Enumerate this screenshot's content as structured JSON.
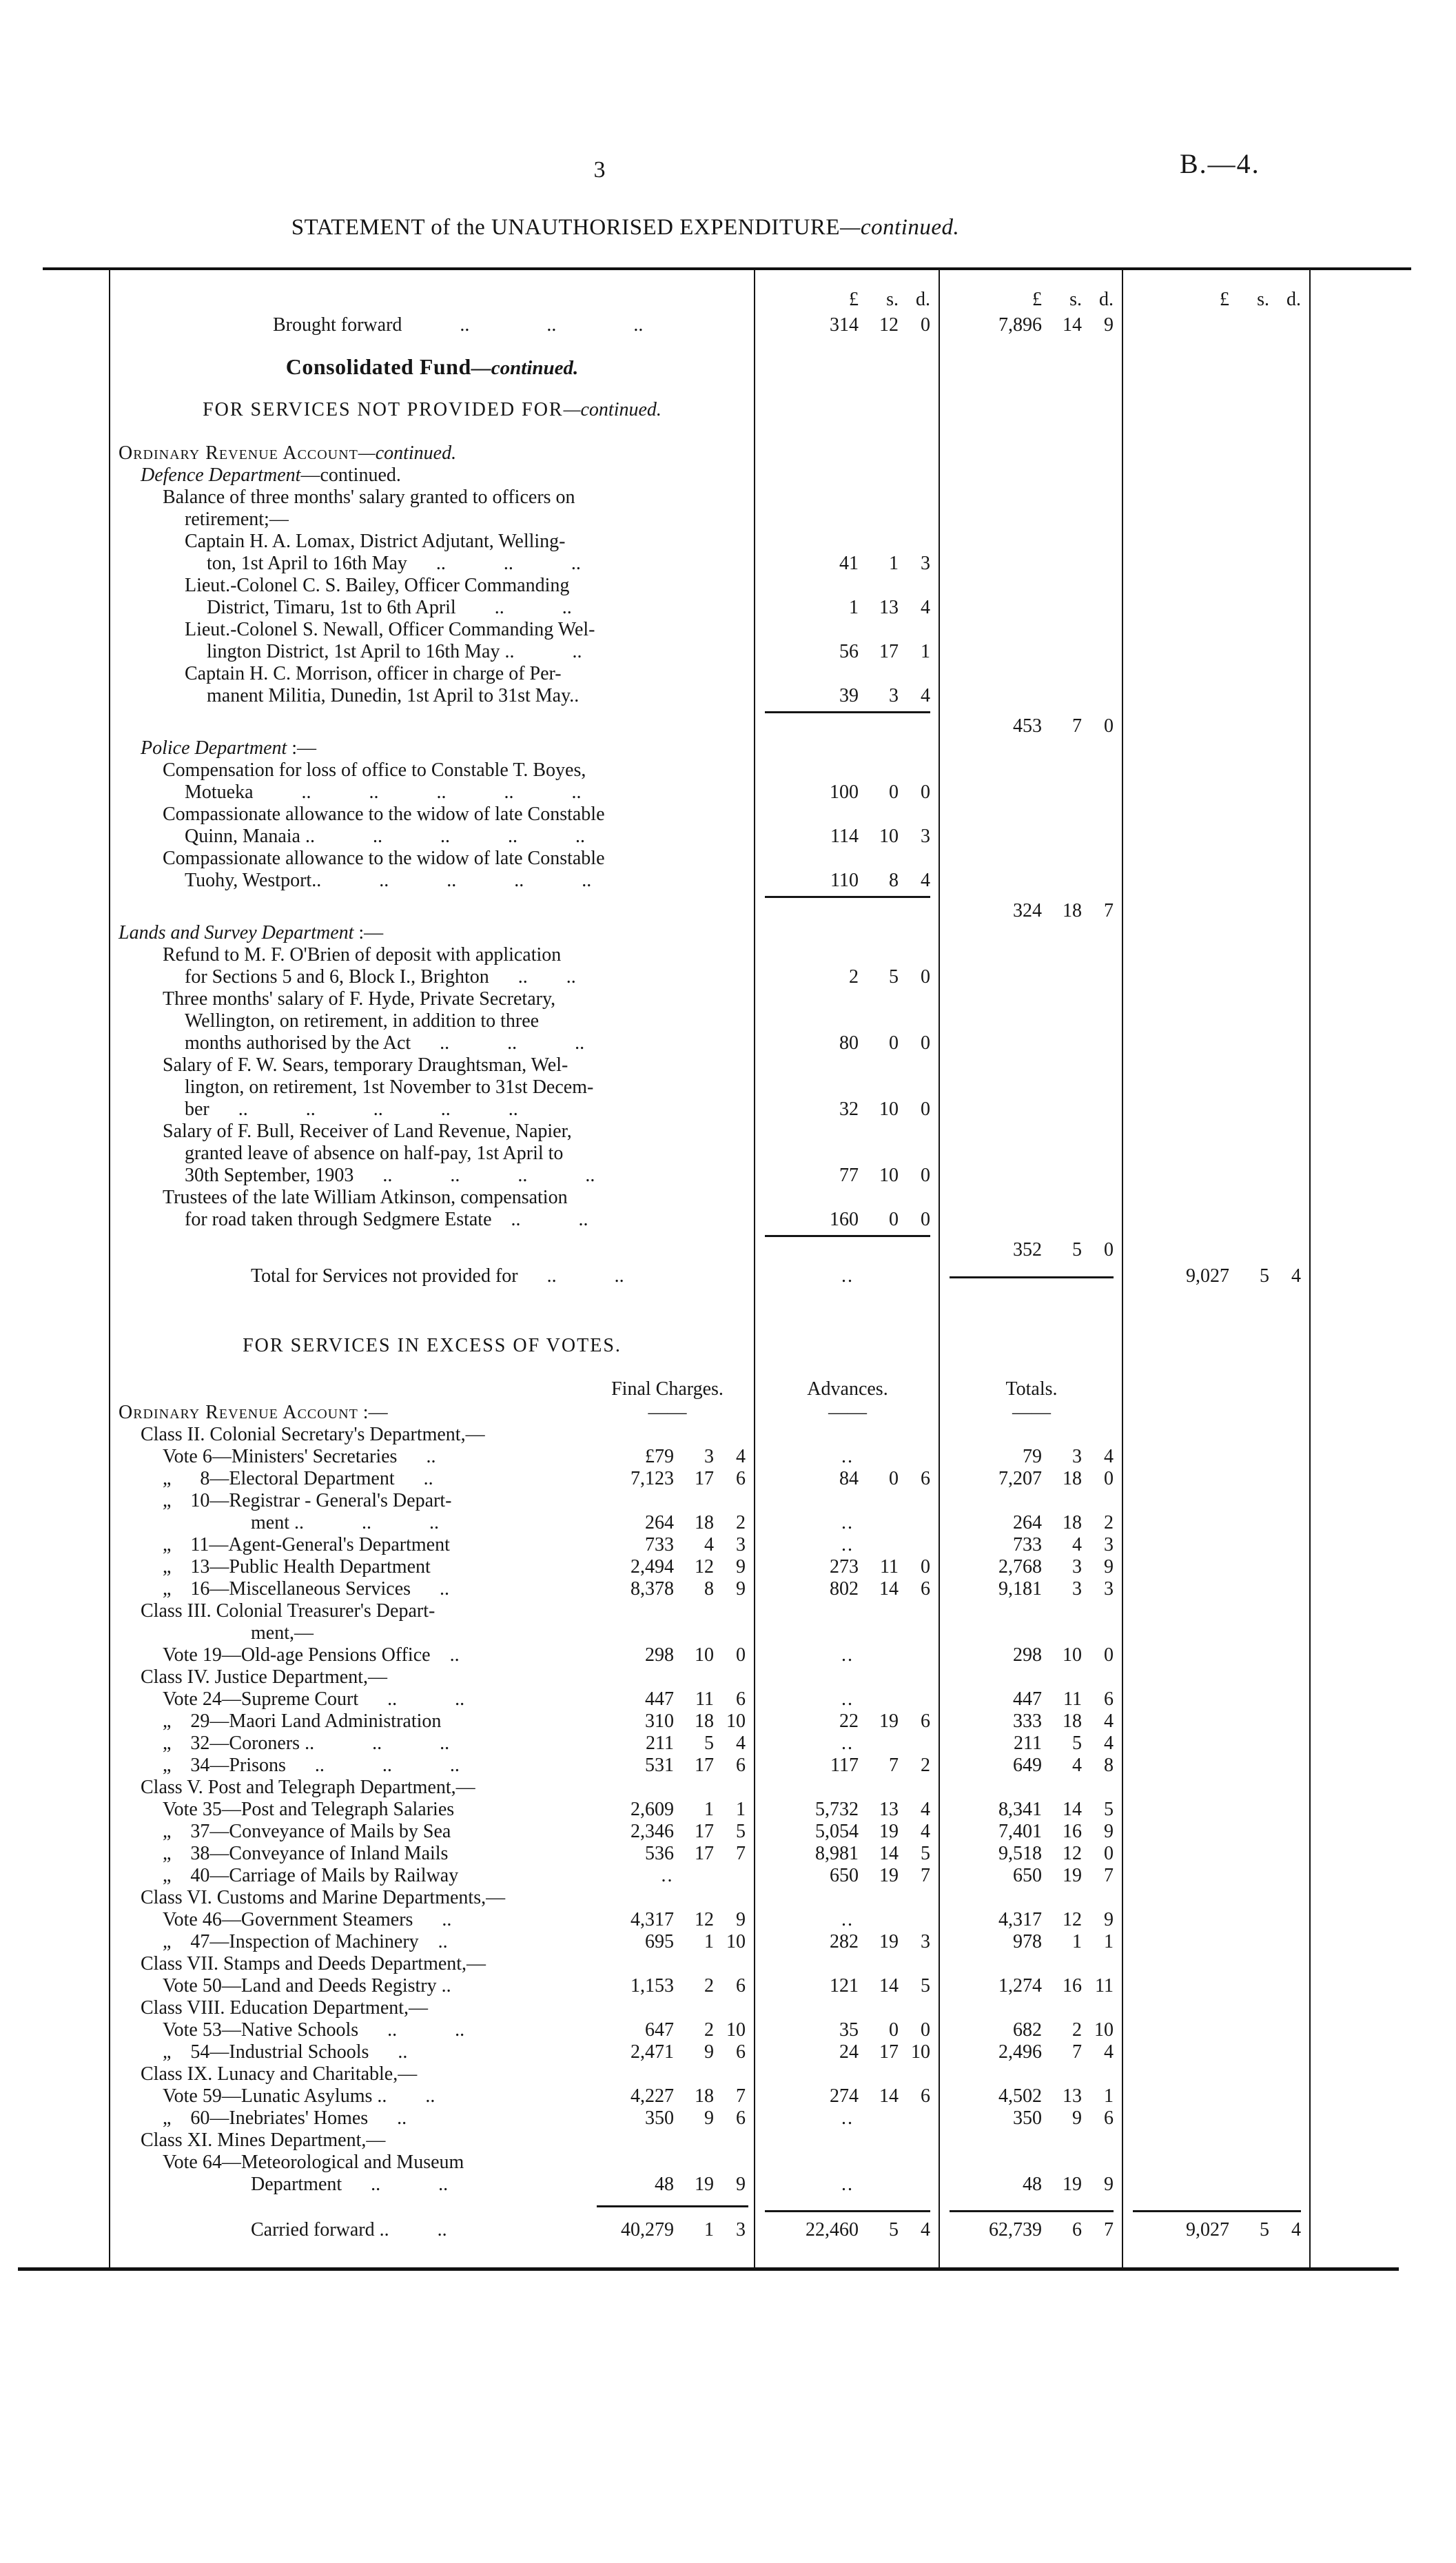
{
  "page": {
    "number": "3",
    "ref": "B.—4."
  },
  "title": {
    "p1": "STATEMENT",
    "p2": " of the ",
    "p3": "UNAUTHORISED EXPENDITURE",
    "p4": "—continued."
  },
  "table": {
    "rows": [
      {
        "st": "mh",
        "h": 42,
        "m1": "£ s. d.",
        "m2": "£ s. d.",
        "m3": "£ s. d."
      },
      {
        "t": "Brought forward   ..    ..    ..",
        "in": 7,
        "m1": "314 12 0",
        "m2": "7,896 14 9"
      },
      {
        "gap": 24
      },
      {
        "t": "Consolidated Fund",
        "t2": "—continued.",
        "st": "fund",
        "h": 40
      },
      {
        "gap": 22
      },
      {
        "t": "FOR SERVICES NOT PROVIDED FOR",
        "t2": "—continued.",
        "st": "cap",
        "h": 42
      },
      {
        "gap": 26
      },
      {
        "t": "Ordinary Revenue Account",
        "t2": "—continued.",
        "st": "sc",
        "in": 0
      },
      {
        "t": "Defence Department",
        "t2": "—continued.",
        "t2st": "n",
        "st": "it",
        "in": 1
      },
      {
        "t": "Balance of three months' salary granted to officers on",
        "in": 2
      },
      {
        "t": "retirement;—",
        "in": 3
      },
      {
        "t": "Captain H. A. Lomax, District Adjutant, Welling-",
        "in": 3
      },
      {
        "t": "ton, 1st April to 16th May  ..   ..   ..",
        "in": 4,
        "m1": "41 1 3"
      },
      {
        "t": "Lieut.-Colonel C. S. Bailey, Officer Commanding",
        "in": 3
      },
      {
        "t": "District, Timaru, 1st to 6th April  ..   ..",
        "in": 4,
        "m1": "1 13 4"
      },
      {
        "t": "Lieut.-Colonel S. Newall, Officer Commanding Wel-",
        "in": 3
      },
      {
        "t": "lington District, 1st April to 16th May ..   ..",
        "in": 4,
        "m1": "56 17 1"
      },
      {
        "t": "Captain H. C. Morrison, officer in charge of Per-",
        "in": 3
      },
      {
        "t": "manent Militia, Dunedin, 1st April to 31st May..",
        "in": 4,
        "m1": "39 3 4"
      },
      {
        "h": 12,
        "r": [
          "m1"
        ]
      },
      {
        "m2": "453 7 0"
      },
      {
        "t": "Police Department",
        "t2": " :—",
        "t2st": "n",
        "st": "it",
        "in": 1
      },
      {
        "t": "Compensation for loss of office to Constable T. Boyes,",
        "in": 2
      },
      {
        "t": "Motueka   ..   ..   ..   ..   ..",
        "in": 3,
        "m1": "100 0 0"
      },
      {
        "t": "Compassionate allowance to the widow of late Constable",
        "in": 2
      },
      {
        "t": "Quinn, Manaia ..   ..   ..   ..   ..",
        "in": 3,
        "m1": "114 10 3"
      },
      {
        "t": "Compassionate allowance to the widow of late Constable",
        "in": 2
      },
      {
        "t": "Tuohy, Westport..   ..   ..   ..   ..",
        "in": 3,
        "m1": "110 8 4"
      },
      {
        "h": 12,
        "r": [
          "m1"
        ]
      },
      {
        "m2": "324 18 7"
      },
      {
        "t": "Lands and Survey Department",
        "t2": " :—",
        "t2st": "n",
        "st": "it",
        "in": 0
      },
      {
        "t": "Refund to M. F. O'Brien of deposit with application",
        "in": 2
      },
      {
        "t": "for Sections 5 and 6, Block I., Brighton  ..  ..",
        "in": 3,
        "m1": "2 5 0"
      },
      {
        "t": "Three months' salary of F. Hyde, Private Secretary,",
        "in": 2
      },
      {
        "t": "Wellington, on retirement, in addition to three",
        "in": 3
      },
      {
        "t": "months authorised by the Act  ..   ..   ..",
        "in": 3,
        "m1": "80 0 0"
      },
      {
        "t": "Salary of F. W. Sears, temporary Draughtsman, Wel-",
        "in": 2
      },
      {
        "t": "lington, on retirement, 1st November to 31st Decem-",
        "in": 3
      },
      {
        "t": "ber  ..   ..   ..   ..   ..",
        "in": 3,
        "m1": "32 10 0"
      },
      {
        "t": "Salary of F. Bull, Receiver of Land Revenue, Napier,",
        "in": 2
      },
      {
        "t": "granted leave of absence on half-pay, 1st April to",
        "in": 3
      },
      {
        "t": "30th September, 1903  ..   ..   ..   ..",
        "in": 3,
        "m1": "77 10 0"
      },
      {
        "t": "Trustees of the late William Atkinson, compensation",
        "in": 2
      },
      {
        "t": "for road taken through Sedgmere Estate ..   ..",
        "in": 3,
        "m1": "160 0 0"
      },
      {
        "h": 12,
        "r": [
          "m1"
        ]
      },
      {
        "m2": "352 5 0"
      },
      {
        "t": "Total for Services not provided for  ..   ..",
        "in": 6,
        "m1": "..",
        "r": [
          "m2"
        ],
        "m3": "9,027 5 4",
        "h": 44
      },
      {
        "gap": 58
      },
      {
        "t": "FOR SERVICES IN EXCESS OF VOTES.",
        "st": "cap",
        "h": 42
      },
      {
        "gap": 24
      },
      {
        "st": "ch",
        "h": 36,
        "fc": "Final Charges.",
        "m1": "Advances.",
        "m2": "Totals."
      },
      {
        "t": "Ordinary Revenue Account",
        "t2": " :—",
        "t2st": "n",
        "st": "sc",
        "in": 0,
        "fc": "——",
        "m1": "——",
        "m2": "——"
      },
      {
        "t": "Class II. Colonial Secretary's Department,—",
        "in": 1
      },
      {
        "t": "Vote 6—Ministers' Secretaries  ..",
        "in": 2,
        "fc": "£79 3 4",
        "m1": "..",
        "m2": "79 3 4"
      },
      {
        "t": "„  8—Electoral Department  ..",
        "in": 2,
        "fc": "7,123 17 6",
        "m1": "84 0 6",
        "m2": "7,207 18 0"
      },
      {
        "t": "„ 10—Registrar - General's Depart-",
        "in": 2
      },
      {
        "t": "ment ..   ..   ..",
        "in": 6,
        "fc": "264 18 2",
        "m1": "..",
        "m2": "264 18 2"
      },
      {
        "t": "„ 11—Agent-General's Department",
        "in": 2,
        "fc": "733 4 3",
        "m1": "..",
        "m2": "733 4 3"
      },
      {
        "t": "„ 13—Public Health Department",
        "in": 2,
        "fc": "2,494 12 9",
        "m1": "273 11 0",
        "m2": "2,768 3 9"
      },
      {
        "t": "„ 16—Miscellaneous Services  ..",
        "in": 2,
        "fc": "8,378 8 9",
        "m1": "802 14 6",
        "m2": "9,181 3 3"
      },
      {
        "t": "Class III. Colonial Treasurer's Depart-",
        "in": 1
      },
      {
        "t": "ment,—",
        "in": 6
      },
      {
        "t": "Vote 19—Old-age Pensions Office ..",
        "in": 2,
        "fc": "298 10 0",
        "m1": "..",
        "m2": "298 10 0"
      },
      {
        "t": "Class IV. Justice Department,—",
        "in": 1
      },
      {
        "t": "Vote 24—Supreme Court  ..   ..",
        "in": 2,
        "fc": "447 11 6",
        "m1": "..",
        "m2": "447 11 6"
      },
      {
        "t": "„ 29—Maori Land Administration",
        "in": 2,
        "fc": "310 18 10",
        "m1": "22 19 6",
        "m2": "333 18 4"
      },
      {
        "t": "„ 32—Coroners ..   ..   ..",
        "in": 2,
        "fc": "211 5 4",
        "m1": "..",
        "m2": "211 5 4"
      },
      {
        "t": "„ 34—Prisons  ..   ..   ..",
        "in": 2,
        "fc": "531 17 6",
        "m1": "117 7 2",
        "m2": "649 4 8"
      },
      {
        "t": "Class V. Post and Telegraph Department,—",
        "in": 1
      },
      {
        "t": "Vote 35—Post and Telegraph Salaries",
        "in": 2,
        "fc": "2,609 1 1",
        "m1": "5,732 13 4",
        "m2": "8,341 14 5"
      },
      {
        "t": "„ 37—Conveyance of Mails by Sea",
        "in": 2,
        "fc": "2,346 17 5",
        "m1": "5,054 19 4",
        "m2": "7,401 16 9"
      },
      {
        "t": "„ 38—Conveyance of Inland Mails",
        "in": 2,
        "fc": "536 17 7",
        "m1": "8,981 14 5",
        "m2": "9,518 12 0"
      },
      {
        "t": "„ 40—Carriage of Mails by Railway",
        "in": 2,
        "fc": "..",
        "m1": "650 19 7",
        "m2": "650 19 7"
      },
      {
        "t": "Class VI. Customs and Marine Departments,—",
        "in": 1
      },
      {
        "t": "Vote 46—Government Steamers  ..",
        "in": 2,
        "fc": "4,317 12 9",
        "m1": "..",
        "m2": "4,317 12 9"
      },
      {
        "t": "„ 47—Inspection of Machinery ..",
        "in": 2,
        "fc": "695 1 10",
        "m1": "282 19 3",
        "m2": "978 1 1"
      },
      {
        "t": "Class VII. Stamps and Deeds Department,—",
        "in": 1
      },
      {
        "t": "Vote 50—Land and Deeds Registry ..",
        "in": 2,
        "fc": "1,153 2 6",
        "m1": "121 14 5",
        "m2": "1,274 16 11"
      },
      {
        "t": "Class VIII. Education Department,—",
        "in": 1
      },
      {
        "t": "Vote 53—Native Schools  ..   ..",
        "in": 2,
        "fc": "647 2 10",
        "m1": "35 0 0",
        "m2": "682 2 10"
      },
      {
        "t": "„ 54—Industrial Schools  ..",
        "in": 2,
        "fc": "2,471 9 6",
        "m1": "24 17 10",
        "m2": "2,496 7 4"
      },
      {
        "t": "Class IX. Lunacy and Charitable,—",
        "in": 1
      },
      {
        "t": "Vote 59—Lunatic Asylums ..  ..",
        "in": 2,
        "fc": "4,227 18 7",
        "m1": "274 14 6",
        "m2": "4,502 13 1"
      },
      {
        "t": "„ 60—Inebriates' Homes  ..",
        "in": 2,
        "fc": "350 9 6",
        "m1": "..",
        "m2": "350 9 6"
      },
      {
        "t": "Class XI. Mines Department,—",
        "in": 1
      },
      {
        "t": "Vote 64—Meteorological and Museum",
        "in": 2
      },
      {
        "t": "Department  ..   ..",
        "in": 6,
        "fc": "48 19 9",
        "m1": "..",
        "m2": "48 19 9"
      },
      {
        "gap": 14
      },
      {
        "h": 14,
        "r": [
          "fc",
          "m1",
          "m2",
          "m3"
        ]
      },
      {
        "t": "Carried forward ..   ..",
        "in": 6,
        "fc": "40,279 1 3",
        "m1": "22,460 5 4",
        "m2": "62,739 6 7",
        "m3": "9,027 5 4",
        "h": 44
      }
    ]
  }
}
